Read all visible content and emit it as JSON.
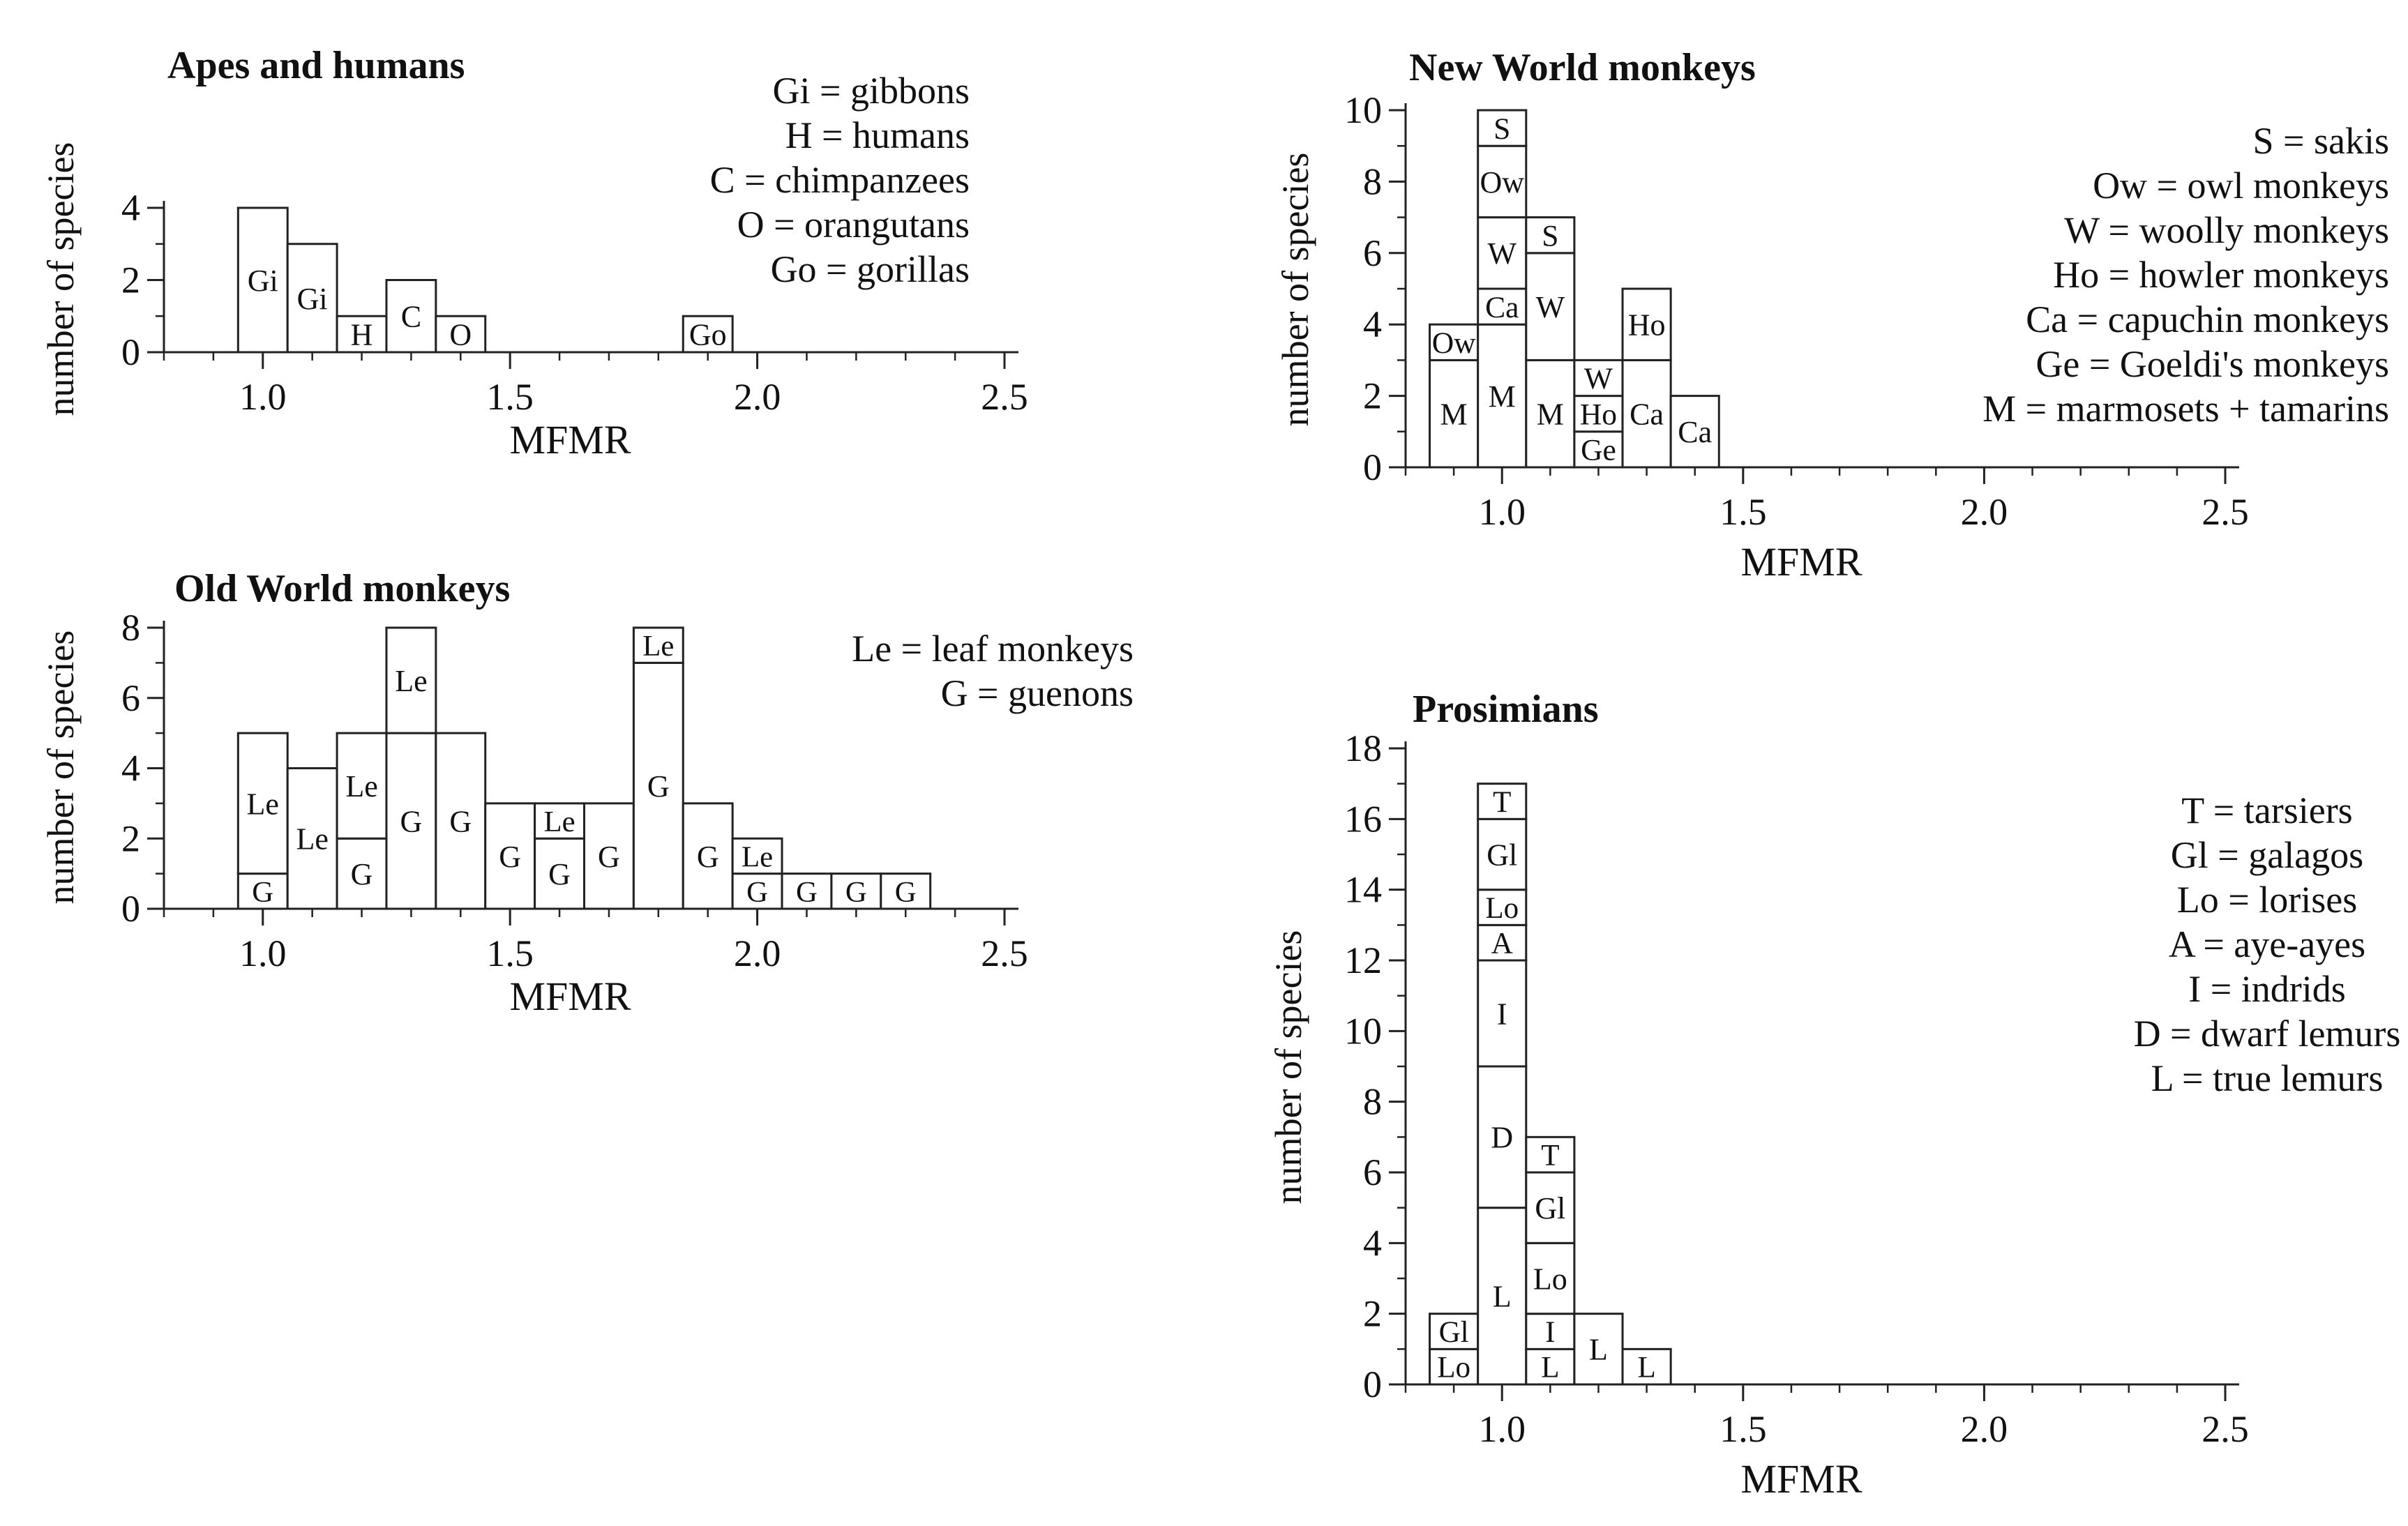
{
  "chart_data": [
    {
      "type": "bar",
      "title": "Apes and humans",
      "xlabel": "MFMR",
      "ylabel": "number of species",
      "xlim": [
        0.8,
        2.5
      ],
      "ylim": [
        0,
        4
      ],
      "xticks": [
        1.0,
        1.5,
        2.0,
        2.5
      ],
      "xtick_labels": [
        "1.0",
        "1.5",
        "2.0",
        "2.5"
      ],
      "yticks": [
        0,
        2,
        4
      ],
      "ytick_labels": [
        "0",
        "2",
        "4"
      ],
      "grid": false,
      "legend": [
        {
          "code": "Gi",
          "text": "Gi = gibbons"
        },
        {
          "code": "H",
          "text": "H = humans"
        },
        {
          "code": "C",
          "text": "C = chimpanzees"
        },
        {
          "code": "O",
          "text": "O = orangutans"
        },
        {
          "code": "Go",
          "text": "Go = gorillas"
        }
      ],
      "bins": [
        {
          "x0": 0.95,
          "x1": 1.05,
          "stack": [
            {
              "label": "Gi",
              "n": 4
            }
          ]
        },
        {
          "x0": 1.05,
          "x1": 1.15,
          "stack": [
            {
              "label": "Gi",
              "n": 3
            }
          ]
        },
        {
          "x0": 1.15,
          "x1": 1.25,
          "stack": [
            {
              "label": "H",
              "n": 1
            }
          ]
        },
        {
          "x0": 1.25,
          "x1": 1.35,
          "stack": [
            {
              "label": "C",
              "n": 2
            }
          ]
        },
        {
          "x0": 1.35,
          "x1": 1.45,
          "stack": [
            {
              "label": "O",
              "n": 1
            }
          ]
        },
        {
          "x0": 1.85,
          "x1": 1.95,
          "stack": [
            {
              "label": "Go",
              "n": 1
            }
          ]
        }
      ]
    },
    {
      "type": "bar",
      "title": "New World monkeys",
      "xlabel": "MFMR",
      "ylabel": "number of species",
      "xlim": [
        0.8,
        2.5
      ],
      "ylim": [
        0,
        10
      ],
      "xticks": [
        1.0,
        1.5,
        2.0,
        2.5
      ],
      "xtick_labels": [
        "1.0",
        "1.5",
        "2.0",
        "2.5"
      ],
      "yticks": [
        0,
        2,
        4,
        6,
        8,
        10
      ],
      "ytick_labels": [
        "0",
        "2",
        "4",
        "6",
        "8",
        "10"
      ],
      "grid": false,
      "legend": [
        {
          "code": "S",
          "text": "S = sakis"
        },
        {
          "code": "Ow",
          "text": "Ow = owl monkeys"
        },
        {
          "code": "W",
          "text": "W = woolly monkeys"
        },
        {
          "code": "Ho",
          "text": "Ho = howler monkeys"
        },
        {
          "code": "Ca",
          "text": "Ca = capuchin monkeys"
        },
        {
          "code": "Ge",
          "text": "Ge = Goeldi's monkeys"
        },
        {
          "code": "M",
          "text": "M = marmosets + tamarins"
        }
      ],
      "bins": [
        {
          "x0": 0.85,
          "x1": 0.95,
          "stack": [
            {
              "label": "M",
              "n": 3
            },
            {
              "label": "Ow",
              "n": 1
            }
          ]
        },
        {
          "x0": 0.95,
          "x1": 1.05,
          "stack": [
            {
              "label": "M",
              "n": 4
            },
            {
              "label": "Ca",
              "n": 1
            },
            {
              "label": "W",
              "n": 2
            },
            {
              "label": "Ow",
              "n": 2
            },
            {
              "label": "S",
              "n": 1
            }
          ]
        },
        {
          "x0": 1.05,
          "x1": 1.15,
          "stack": [
            {
              "label": "M",
              "n": 3
            },
            {
              "label": "W",
              "n": 3
            },
            {
              "label": "S",
              "n": 1
            }
          ]
        },
        {
          "x0": 1.15,
          "x1": 1.25,
          "stack": [
            {
              "label": "Ge",
              "n": 1
            },
            {
              "label": "Ho",
              "n": 1
            },
            {
              "label": "W",
              "n": 1
            }
          ]
        },
        {
          "x0": 1.25,
          "x1": 1.35,
          "stack": [
            {
              "label": "Ca",
              "n": 3
            },
            {
              "label": "Ho",
              "n": 2
            }
          ]
        },
        {
          "x0": 1.35,
          "x1": 1.45,
          "stack": [
            {
              "label": "Ca",
              "n": 2
            }
          ]
        }
      ]
    },
    {
      "type": "bar",
      "title": "Old World monkeys",
      "xlabel": "MFMR",
      "ylabel": "number of species",
      "xlim": [
        0.8,
        2.5
      ],
      "ylim": [
        0,
        8
      ],
      "xticks": [
        1.0,
        1.5,
        2.0,
        2.5
      ],
      "xtick_labels": [
        "1.0",
        "1.5",
        "2.0",
        "2.5"
      ],
      "yticks": [
        0,
        2,
        4,
        6,
        8
      ],
      "ytick_labels": [
        "0",
        "2",
        "4",
        "6",
        "8"
      ],
      "grid": false,
      "legend": [
        {
          "code": "Le",
          "text": "Le = leaf monkeys"
        },
        {
          "code": "G",
          "text": "G = guenons"
        }
      ],
      "bins": [
        {
          "x0": 0.95,
          "x1": 1.05,
          "stack": [
            {
              "label": "G",
              "n": 1
            },
            {
              "label": "Le",
              "n": 4
            }
          ]
        },
        {
          "x0": 1.05,
          "x1": 1.15,
          "stack": [
            {
              "label": "Le",
              "n": 4
            }
          ]
        },
        {
          "x0": 1.15,
          "x1": 1.25,
          "stack": [
            {
              "label": "G",
              "n": 2
            },
            {
              "label": "Le",
              "n": 3
            }
          ]
        },
        {
          "x0": 1.25,
          "x1": 1.35,
          "stack": [
            {
              "label": "G",
              "n": 5
            },
            {
              "label": "Le",
              "n": 3
            }
          ]
        },
        {
          "x0": 1.35,
          "x1": 1.45,
          "stack": [
            {
              "label": "G",
              "n": 5
            }
          ]
        },
        {
          "x0": 1.45,
          "x1": 1.55,
          "stack": [
            {
              "label": "G",
              "n": 3
            }
          ]
        },
        {
          "x0": 1.55,
          "x1": 1.65,
          "stack": [
            {
              "label": "G",
              "n": 2
            },
            {
              "label": "Le",
              "n": 1
            }
          ]
        },
        {
          "x0": 1.65,
          "x1": 1.75,
          "stack": [
            {
              "label": "G",
              "n": 3
            }
          ]
        },
        {
          "x0": 1.75,
          "x1": 1.85,
          "stack": [
            {
              "label": "G",
              "n": 7
            },
            {
              "label": "Le",
              "n": 1
            }
          ]
        },
        {
          "x0": 1.85,
          "x1": 1.95,
          "stack": [
            {
              "label": "G",
              "n": 3
            }
          ]
        },
        {
          "x0": 1.95,
          "x1": 2.05,
          "stack": [
            {
              "label": "G",
              "n": 1
            },
            {
              "label": "Le",
              "n": 1
            }
          ]
        },
        {
          "x0": 2.05,
          "x1": 2.15,
          "stack": [
            {
              "label": "G",
              "n": 1
            }
          ]
        },
        {
          "x0": 2.15,
          "x1": 2.25,
          "stack": [
            {
              "label": "G",
              "n": 1
            }
          ]
        },
        {
          "x0": 2.25,
          "x1": 2.35,
          "stack": [
            {
              "label": "G",
              "n": 1
            }
          ]
        }
      ]
    },
    {
      "type": "bar",
      "title": "Prosimians",
      "xlabel": "MFMR",
      "ylabel": "number of species",
      "xlim": [
        0.8,
        2.5
      ],
      "ylim": [
        0,
        18
      ],
      "xticks": [
        1.0,
        1.5,
        2.0,
        2.5
      ],
      "xtick_labels": [
        "1.0",
        "1.5",
        "2.0",
        "2.5"
      ],
      "yticks": [
        0,
        2,
        4,
        6,
        8,
        10,
        12,
        14,
        16,
        18
      ],
      "ytick_labels": [
        "0",
        "2",
        "4",
        "6",
        "8",
        "10",
        "12",
        "14",
        "16",
        "18"
      ],
      "grid": false,
      "legend": [
        {
          "code": "T",
          "text": "T = tarsiers"
        },
        {
          "code": "Gl",
          "text": "Gl = galagos"
        },
        {
          "code": "Lo",
          "text": "Lo = lorises"
        },
        {
          "code": "A",
          "text": "A = aye-ayes"
        },
        {
          "code": "I",
          "text": "I = indrids"
        },
        {
          "code": "D",
          "text": "D = dwarf lemurs"
        },
        {
          "code": "L",
          "text": "L = true lemurs"
        }
      ],
      "bins": [
        {
          "x0": 0.85,
          "x1": 0.95,
          "stack": [
            {
              "label": "Lo",
              "n": 1
            },
            {
              "label": "Gl",
              "n": 1
            }
          ]
        },
        {
          "x0": 0.95,
          "x1": 1.05,
          "stack": [
            {
              "label": "L",
              "n": 5
            },
            {
              "label": "D",
              "n": 4
            },
            {
              "label": "I",
              "n": 3
            },
            {
              "label": "A",
              "n": 1
            },
            {
              "label": "Lo",
              "n": 1
            },
            {
              "label": "Gl",
              "n": 2
            },
            {
              "label": "T",
              "n": 1
            }
          ]
        },
        {
          "x0": 1.05,
          "x1": 1.15,
          "stack": [
            {
              "label": "L",
              "n": 1
            },
            {
              "label": "I",
              "n": 1
            },
            {
              "label": "Lo",
              "n": 2
            },
            {
              "label": "Gl",
              "n": 2
            },
            {
              "label": "T",
              "n": 1
            }
          ]
        },
        {
          "x0": 1.15,
          "x1": 1.25,
          "stack": [
            {
              "label": "L",
              "n": 2
            }
          ]
        },
        {
          "x0": 1.25,
          "x1": 1.35,
          "stack": [
            {
              "label": "L",
              "n": 1
            }
          ]
        }
      ]
    }
  ]
}
